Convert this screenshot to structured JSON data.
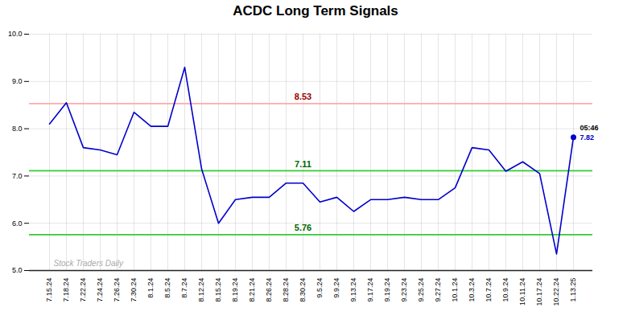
{
  "chart_data": {
    "type": "line",
    "title": "ACDC Long Term Signals",
    "categories": [
      "7.15.24",
      "7.18.24",
      "7.22.24",
      "7.24.24",
      "7.26.24",
      "7.30.24",
      "8.1.24",
      "8.5.24",
      "8.7.24",
      "8.12.24",
      "8.15.24",
      "8.19.24",
      "8.21.24",
      "8.26.24",
      "8.28.24",
      "8.30.24",
      "9.5.24",
      "9.9.24",
      "9.13.24",
      "9.17.24",
      "9.19.24",
      "9.23.24",
      "9.25.24",
      "9.27.24",
      "10.1.24",
      "10.3.24",
      "10.7.24",
      "10.9.24",
      "10.11.24",
      "10.17.24",
      "10.22.24",
      "1.13.25"
    ],
    "values": [
      8.1,
      8.55,
      7.6,
      7.55,
      7.45,
      8.35,
      8.05,
      8.05,
      9.3,
      7.15,
      6.0,
      6.5,
      6.55,
      6.55,
      6.85,
      6.85,
      6.45,
      6.55,
      6.25,
      6.5,
      6.5,
      6.55,
      6.5,
      6.5,
      6.75,
      7.6,
      7.55,
      7.1,
      7.3,
      7.05,
      5.35,
      7.82
    ],
    "color": "#0000cc",
    "ylim": [
      5,
      10
    ],
    "yticks": [
      5,
      6,
      7,
      8,
      9,
      10
    ],
    "grid": true,
    "reference_lines": [
      {
        "value": 8.53,
        "label": "8.53",
        "color": "#ffaaaa",
        "label_color": "#990000"
      },
      {
        "value": 7.11,
        "label": "7.11",
        "color": "#33cc33",
        "label_color": "#006600"
      },
      {
        "value": 5.76,
        "label": "5.76",
        "color": "#33cc33",
        "label_color": "#006600"
      }
    ],
    "annotations": [
      {
        "text": "05:46",
        "color": "#000000"
      },
      {
        "text": "7.82",
        "color": "#0000cc"
      }
    ],
    "watermark": {
      "text": "Stock Traders Daily",
      "color": "#aaaaaa"
    }
  }
}
